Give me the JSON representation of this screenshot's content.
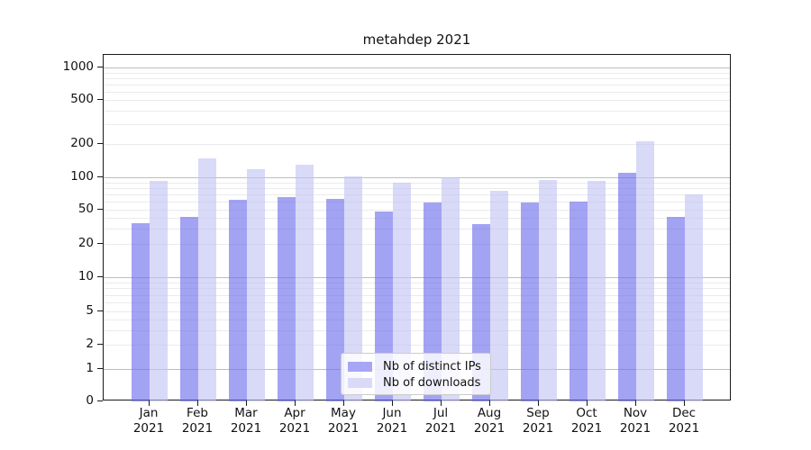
{
  "title": {
    "text": "metahdep 2021"
  },
  "chart_data": {
    "type": "bar",
    "title": "metahdep 2021",
    "x_tick_line2": "2021",
    "categories": [
      "Jan",
      "Feb",
      "Mar",
      "Apr",
      "May",
      "Jun",
      "Jul",
      "Aug",
      "Sep",
      "Oct",
      "Nov",
      "Dec"
    ],
    "series": [
      {
        "name": "Nb of distinct IPs",
        "legend_color": "#a6a6f5",
        "bar_color": "#6b6bee",
        "values": [
          35,
          41,
          62,
          65,
          63,
          48,
          58,
          34,
          58,
          60,
          110,
          41
        ]
      },
      {
        "name": "Nb of downloads",
        "legend_color": "#dadaf8",
        "bar_color": "#c1c1f3",
        "values": [
          92,
          147,
          119,
          129,
          102,
          90,
          100,
          75,
          94,
          93,
          212,
          69
        ]
      }
    ],
    "y_axis": {
      "scale": "symlog",
      "tick_values": [
        1000,
        500,
        200,
        100,
        50,
        20,
        10,
        5,
        2,
        1,
        0
      ],
      "tick_labels": [
        "1000",
        "500",
        "200",
        "100",
        "50",
        "20",
        "10",
        "5",
        "2",
        "1",
        "0"
      ],
      "range": [
        0,
        1300
      ]
    },
    "grid": {
      "major_values": [
        1,
        10,
        100,
        1000
      ],
      "minor_multipliers": [
        2,
        3,
        4,
        5,
        6,
        7,
        8,
        9
      ],
      "major_color": "#bdbdbd",
      "minor_color": "#ebebeb"
    },
    "legend": {
      "labels": [
        "Nb of distinct IPs",
        "Nb of downloads"
      ],
      "position": "lower-center-inside"
    }
  },
  "colors": {
    "background": "#ffffff",
    "spine": "#1a1a1a",
    "text": "#111111"
  }
}
